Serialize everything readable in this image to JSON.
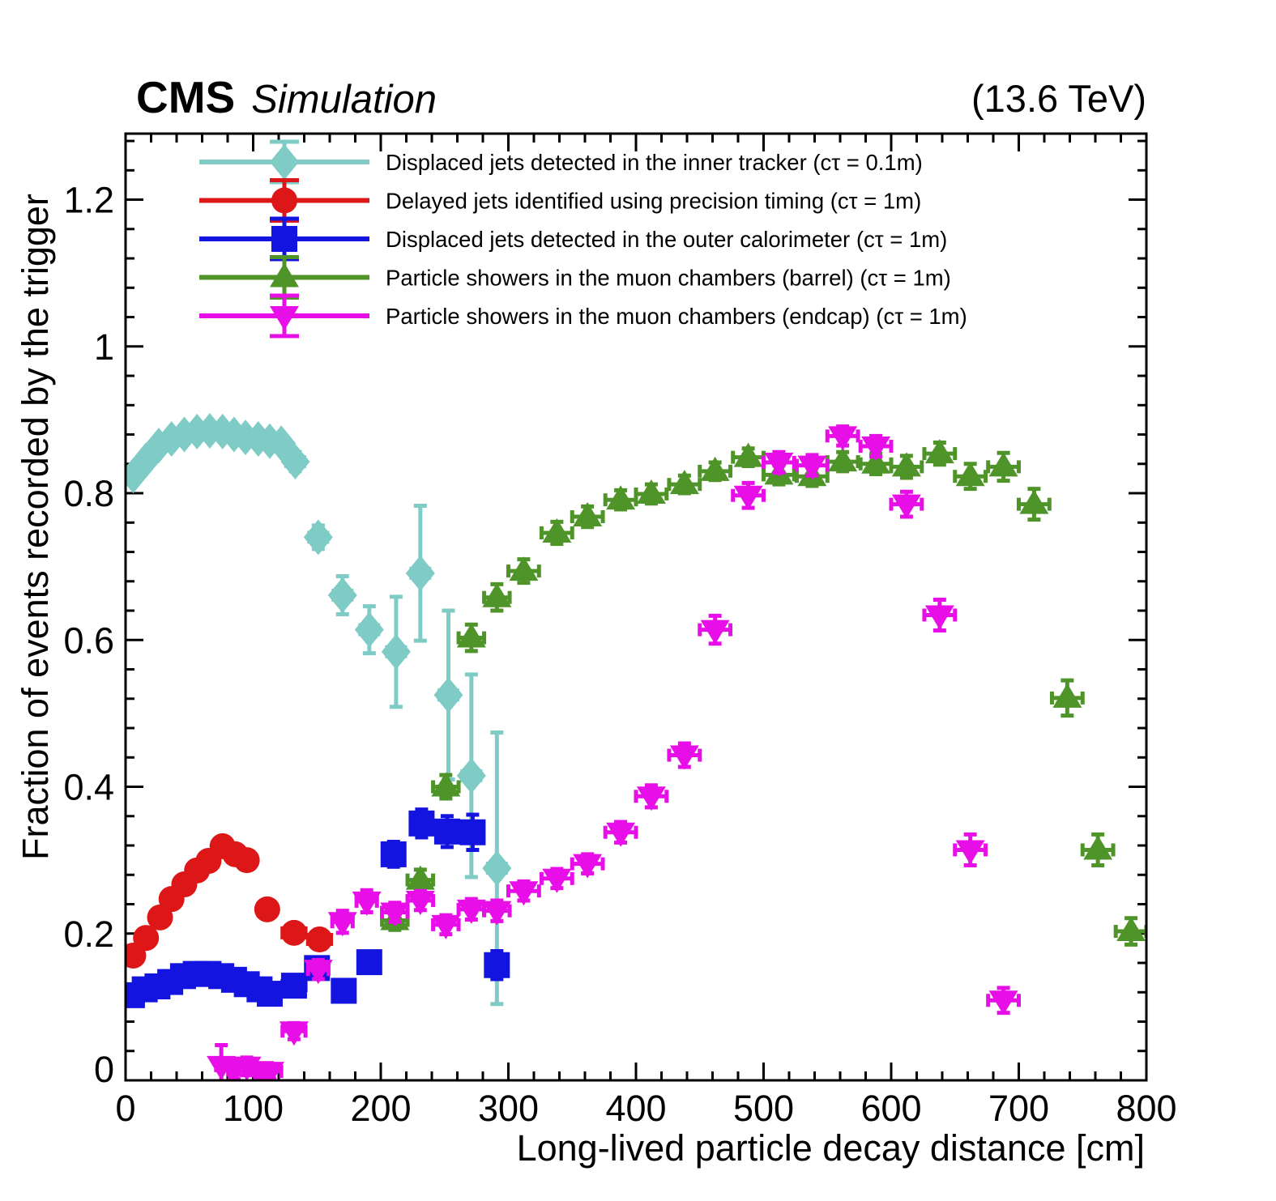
{
  "header": {
    "experiment": "CMS",
    "context": "Simulation",
    "energy": "(13.6 TeV)"
  },
  "chart_data": {
    "type": "scatter",
    "title": "CMS Simulation",
    "energy_label": "(13.6 TeV)",
    "xlabel": "Long-lived particle decay distance [cm]",
    "ylabel": "Fraction of events recorded by the trigger",
    "xlim": [
      0,
      800
    ],
    "ylim": [
      0,
      1.29
    ],
    "grid": false,
    "legend_position": "top-left",
    "x_major_ticks": [
      {
        "v": 0,
        "label": "0"
      },
      {
        "v": 100,
        "label": "100"
      },
      {
        "v": 200,
        "label": "200"
      },
      {
        "v": 300,
        "label": "300"
      },
      {
        "v": 400,
        "label": "400"
      },
      {
        "v": 500,
        "label": "500"
      },
      {
        "v": 600,
        "label": "600"
      },
      {
        "v": 700,
        "label": "700"
      },
      {
        "v": 800,
        "label": "800"
      }
    ],
    "x_minor_step": 20,
    "y_major_ticks": [
      {
        "v": 0,
        "label": "0"
      },
      {
        "v": 0.2,
        "label": "0.2"
      },
      {
        "v": 0.4,
        "label": "0.4"
      },
      {
        "v": 0.6,
        "label": "0.6"
      },
      {
        "v": 0.8,
        "label": "0.8"
      },
      {
        "v": 1.0,
        "label": "1"
      },
      {
        "v": 1.2,
        "label": "1.2"
      }
    ],
    "y_minor_step": 0.04,
    "series": [
      {
        "id": "inner-tracker",
        "name": "Displaced jets detected in the inner tracker (cτ = 0.1m)",
        "marker": "diamond",
        "color": "#7fcbc6",
        "points": [
          [
            6,
            0.824,
            4,
            0.01
          ],
          [
            16,
            0.845,
            4,
            0.009
          ],
          [
            26,
            0.865,
            4,
            0.008
          ],
          [
            36,
            0.874,
            4,
            0.008
          ],
          [
            46,
            0.88,
            4,
            0.008
          ],
          [
            56,
            0.884,
            4,
            0.008
          ],
          [
            66,
            0.885,
            4,
            0.008
          ],
          [
            76,
            0.884,
            4,
            0.008
          ],
          [
            85,
            0.88,
            4,
            0.008
          ],
          [
            94,
            0.876,
            4,
            0.009
          ],
          [
            104,
            0.874,
            4,
            0.009
          ],
          [
            113,
            0.871,
            4,
            0.01
          ],
          [
            122,
            0.868,
            4,
            0.011
          ],
          [
            133,
            0.843,
            7,
            0.013
          ],
          [
            151,
            0.74,
            7,
            0.016
          ],
          [
            170,
            0.661,
            7,
            0.026
          ],
          [
            191,
            0.614,
            7,
            0.032
          ],
          [
            212,
            0.584,
            7,
            0.075
          ],
          [
            231,
            0.691,
            7,
            0.092
          ],
          [
            253,
            0.525,
            7,
            0.115
          ],
          [
            271,
            0.415,
            7,
            0.138
          ],
          [
            291,
            0.289,
            7,
            0.185
          ]
        ]
      },
      {
        "id": "precision-timing",
        "name": "Delayed jets identified using precision timing (cτ = 1m)",
        "marker": "circle",
        "color": "#dd1717",
        "points": [
          [
            6,
            0.17,
            4,
            0.008
          ],
          [
            16,
            0.194,
            4,
            0.008
          ],
          [
            27,
            0.222,
            4,
            0.008
          ],
          [
            36,
            0.247,
            4,
            0.008
          ],
          [
            46,
            0.267,
            4,
            0.008
          ],
          [
            56,
            0.286,
            4,
            0.008
          ],
          [
            65,
            0.299,
            4,
            0.008
          ],
          [
            76,
            0.319,
            4,
            0.009
          ],
          [
            86,
            0.308,
            4,
            0.009
          ],
          [
            95,
            0.3,
            4,
            0.01
          ],
          [
            111,
            0.233,
            7,
            0.01
          ],
          [
            132,
            0.201,
            9,
            0.011
          ],
          [
            152,
            0.192,
            9,
            0.013
          ]
        ]
      },
      {
        "id": "outer-calorimeter",
        "name": "Displaced jets detected in the outer calorimeter (cτ = 1m)",
        "marker": "square",
        "color": "#1414e0",
        "points": [
          [
            5,
            0.116,
            4,
            0.006
          ],
          [
            15,
            0.124,
            4,
            0.006
          ],
          [
            25,
            0.128,
            4,
            0.006
          ],
          [
            35,
            0.134,
            4,
            0.006
          ],
          [
            45,
            0.142,
            4,
            0.006
          ],
          [
            55,
            0.145,
            4,
            0.006
          ],
          [
            65,
            0.145,
            4,
            0.006
          ],
          [
            75,
            0.142,
            4,
            0.006
          ],
          [
            85,
            0.137,
            4,
            0.006
          ],
          [
            95,
            0.131,
            4,
            0.007
          ],
          [
            105,
            0.124,
            4,
            0.008
          ],
          [
            113,
            0.118,
            5,
            0.009
          ],
          [
            132,
            0.129,
            9,
            0.01
          ],
          [
            150,
            0.153,
            7,
            0.011
          ],
          [
            171,
            0.122,
            8,
            0.011
          ],
          [
            191,
            0.161,
            8,
            0.014
          ],
          [
            210,
            0.308,
            8,
            0.017
          ],
          [
            232,
            0.35,
            8,
            0.019
          ],
          [
            252,
            0.339,
            8,
            0.021
          ],
          [
            272,
            0.338,
            8,
            0.024
          ],
          [
            291,
            0.157,
            8,
            0.019
          ]
        ]
      },
      {
        "id": "muon-barrel",
        "name": "Particle showers in the muon chambers (barrel) (cτ = 1m)",
        "marker": "triangle-up",
        "color": "#4f9429",
        "points": [
          [
            211,
            0.218,
            10,
            0.013
          ],
          [
            231,
            0.273,
            10,
            0.014
          ],
          [
            251,
            0.4,
            10,
            0.016
          ],
          [
            271,
            0.603,
            10,
            0.018
          ],
          [
            291,
            0.658,
            10,
            0.018
          ],
          [
            312,
            0.694,
            12,
            0.016
          ],
          [
            338,
            0.746,
            12,
            0.015
          ],
          [
            362,
            0.768,
            12,
            0.014
          ],
          [
            388,
            0.791,
            12,
            0.013
          ],
          [
            412,
            0.799,
            12,
            0.013
          ],
          [
            438,
            0.812,
            12,
            0.012
          ],
          [
            462,
            0.83,
            12,
            0.012
          ],
          [
            488,
            0.849,
            12,
            0.012
          ],
          [
            512,
            0.825,
            12,
            0.013
          ],
          [
            538,
            0.823,
            12,
            0.013
          ],
          [
            562,
            0.843,
            12,
            0.013
          ],
          [
            588,
            0.84,
            12,
            0.014
          ],
          [
            612,
            0.836,
            12,
            0.015
          ],
          [
            638,
            0.854,
            12,
            0.015
          ],
          [
            662,
            0.823,
            12,
            0.017
          ],
          [
            688,
            0.836,
            12,
            0.019
          ],
          [
            712,
            0.785,
            12,
            0.021
          ],
          [
            738,
            0.521,
            12,
            0.024
          ],
          [
            762,
            0.314,
            12,
            0.021
          ],
          [
            788,
            0.203,
            12,
            0.018
          ]
        ]
      },
      {
        "id": "muon-endcap",
        "name": "Particle showers in the muon chambers (endcap) (cτ = 1m)",
        "marker": "triangle-down",
        "color": "#e80ee8",
        "points": [
          [
            75,
            0.02,
            4,
            0.028
          ],
          [
            85,
            0.014,
            4,
            0.012
          ],
          [
            95,
            0.019,
            4,
            0.012
          ],
          [
            105,
            0.013,
            4,
            0.01
          ],
          [
            113,
            0.012,
            9,
            0.01
          ],
          [
            132,
            0.067,
            9,
            0.011
          ],
          [
            151,
            0.151,
            8,
            0.013
          ],
          [
            170,
            0.216,
            8,
            0.015
          ],
          [
            189,
            0.244,
            8,
            0.015
          ],
          [
            211,
            0.229,
            10,
            0.013
          ],
          [
            231,
            0.245,
            10,
            0.013
          ],
          [
            251,
            0.212,
            10,
            0.013
          ],
          [
            271,
            0.233,
            10,
            0.014
          ],
          [
            291,
            0.231,
            10,
            0.014
          ],
          [
            312,
            0.258,
            12,
            0.013
          ],
          [
            338,
            0.275,
            12,
            0.013
          ],
          [
            362,
            0.295,
            12,
            0.013
          ],
          [
            388,
            0.338,
            12,
            0.014
          ],
          [
            412,
            0.387,
            12,
            0.015
          ],
          [
            438,
            0.443,
            12,
            0.016
          ],
          [
            462,
            0.614,
            12,
            0.019
          ],
          [
            488,
            0.797,
            12,
            0.017
          ],
          [
            512,
            0.842,
            12,
            0.014
          ],
          [
            538,
            0.838,
            12,
            0.014
          ],
          [
            562,
            0.878,
            12,
            0.013
          ],
          [
            588,
            0.864,
            12,
            0.014
          ],
          [
            612,
            0.785,
            12,
            0.017
          ],
          [
            638,
            0.634,
            12,
            0.021
          ],
          [
            662,
            0.314,
            12,
            0.021
          ],
          [
            688,
            0.109,
            12,
            0.017
          ]
        ]
      }
    ]
  }
}
